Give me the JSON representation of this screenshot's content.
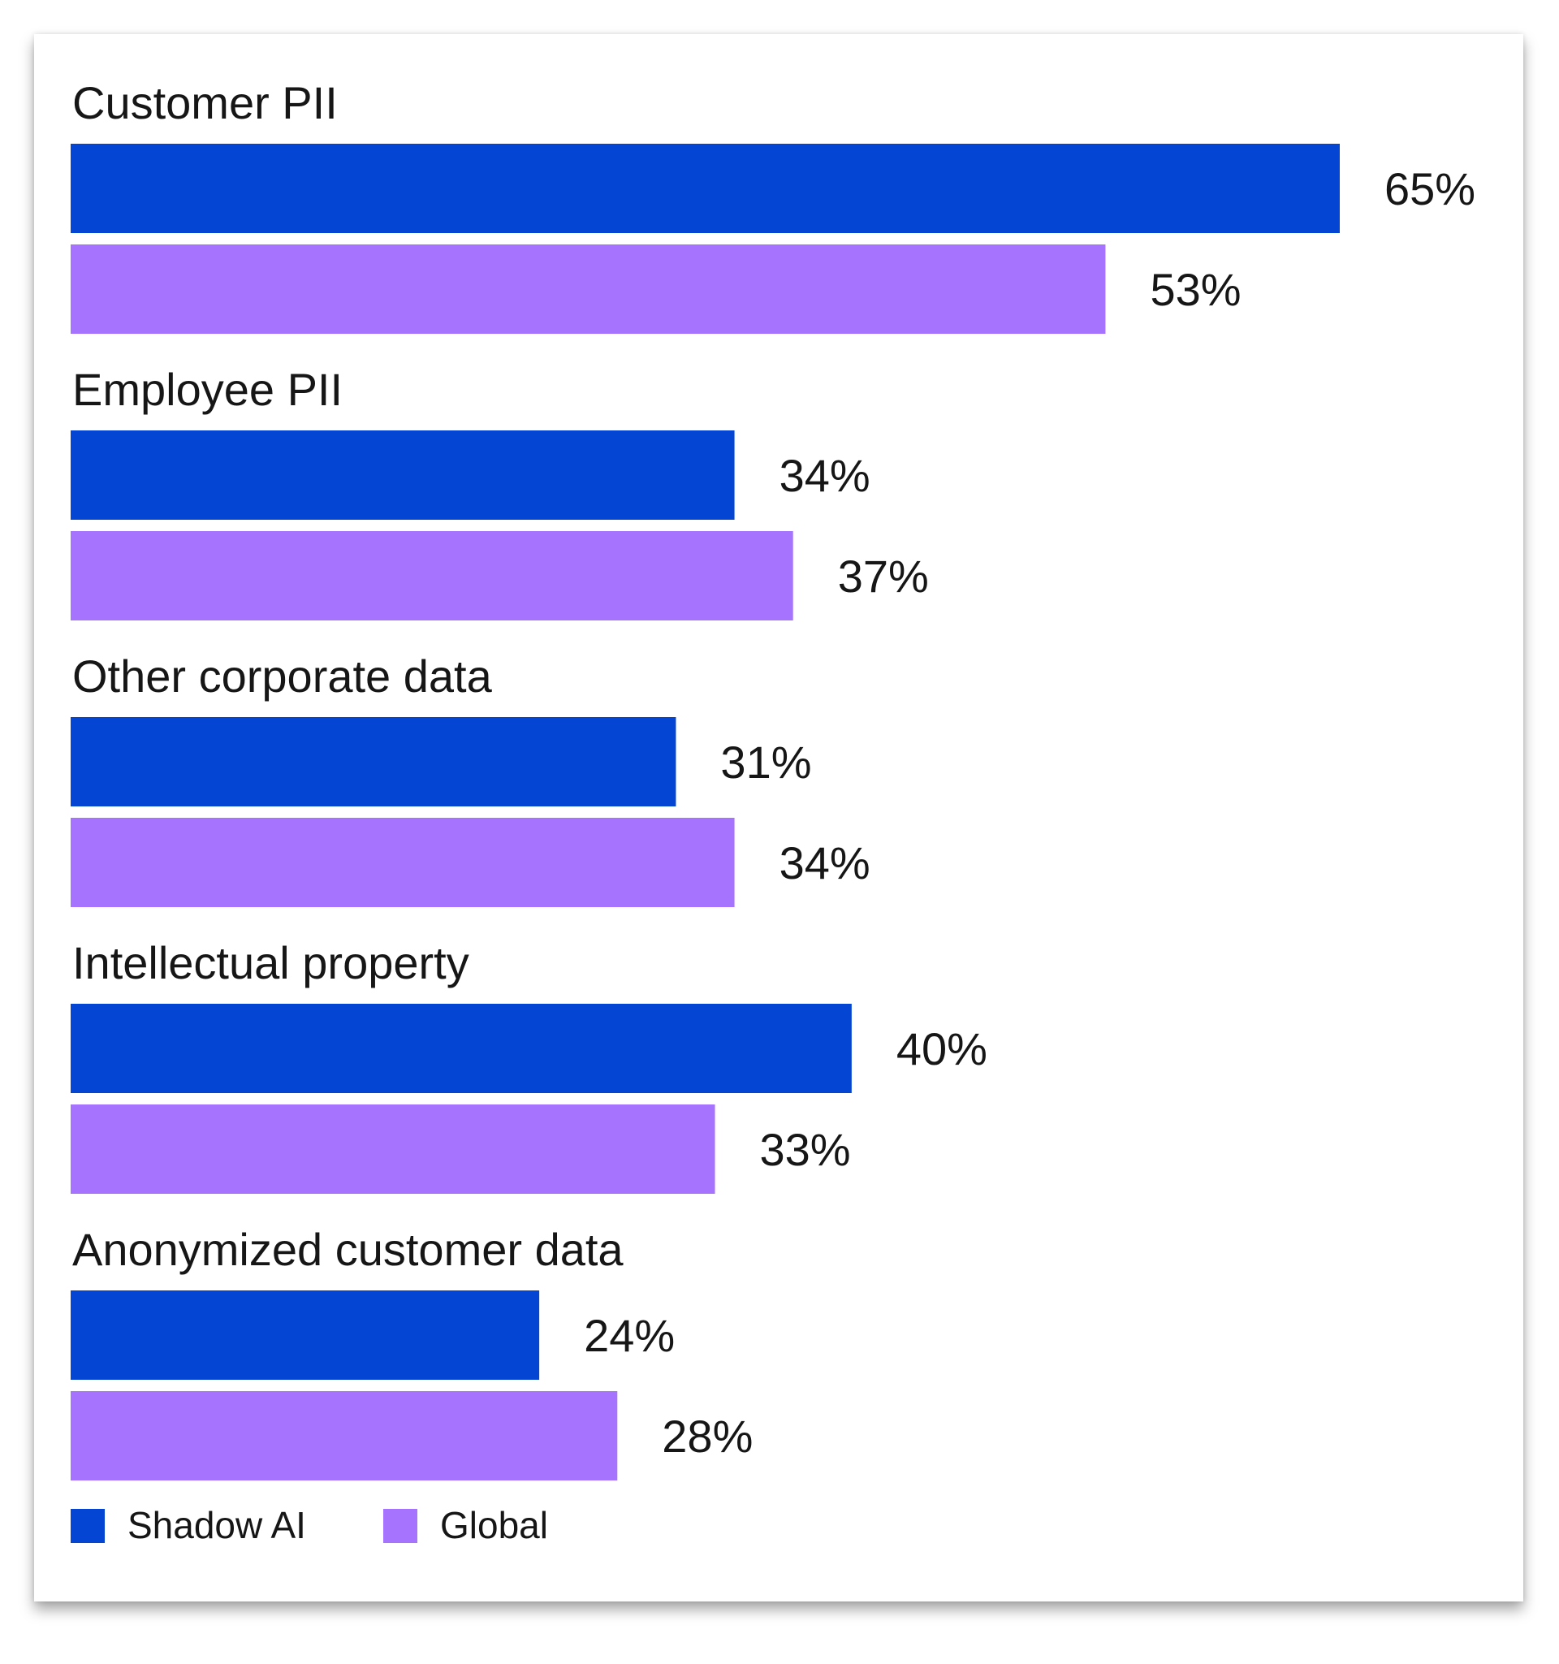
{
  "chart_data": {
    "type": "bar",
    "orientation": "horizontal",
    "categories": [
      "Customer PII",
      "Employee PII",
      "Other corporate data",
      "Intellectual property",
      "Anonymized customer data"
    ],
    "series": [
      {
        "name": "Shadow AI",
        "color": "#0446D3",
        "values": [
          65,
          34,
          31,
          40,
          24
        ],
        "labels": [
          "65%",
          "34%",
          "31%",
          "40%",
          "24%"
        ]
      },
      {
        "name": "Global",
        "color": "#A673FE",
        "values": [
          53,
          37,
          34,
          33,
          28
        ],
        "labels": [
          "53%",
          "37%",
          "34%",
          "33%",
          "28%"
        ]
      }
    ],
    "xlim": [
      0,
      65
    ],
    "grid": false,
    "legend_position": "bottom-left"
  }
}
